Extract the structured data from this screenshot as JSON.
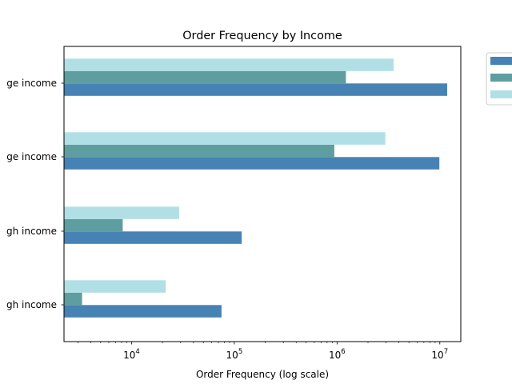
{
  "chart_data": {
    "type": "bar",
    "orientation": "horizontal",
    "title": "Order Frequency by Income",
    "xlabel": "Order Frequency (log scale)",
    "ylabel": "",
    "x_scale": "log",
    "xlim": [
      2200,
      16000000
    ],
    "x_ticks": [
      {
        "value": 10000,
        "base": "10",
        "exp": "4"
      },
      {
        "value": 100000,
        "base": "10",
        "exp": "5"
      },
      {
        "value": 1000000,
        "base": "10",
        "exp": "6"
      },
      {
        "value": 10000000,
        "base": "10",
        "exp": "7"
      }
    ],
    "categories": [
      "ge income",
      "ge income",
      "gh income",
      "gh income"
    ],
    "series": [
      {
        "color": "#4682b4",
        "values": [
          11800000,
          9900000,
          118000,
          75000
        ]
      },
      {
        "color": "#5f9ea0",
        "values": [
          1220000,
          940000,
          8200,
          3300
        ]
      },
      {
        "color": "#b0e0e6",
        "values": [
          3550000,
          2950000,
          29000,
          21500
        ]
      }
    ],
    "legend": {
      "placement": "outside upper right",
      "entries": [
        "",
        "",
        ""
      ]
    },
    "grid": false
  }
}
